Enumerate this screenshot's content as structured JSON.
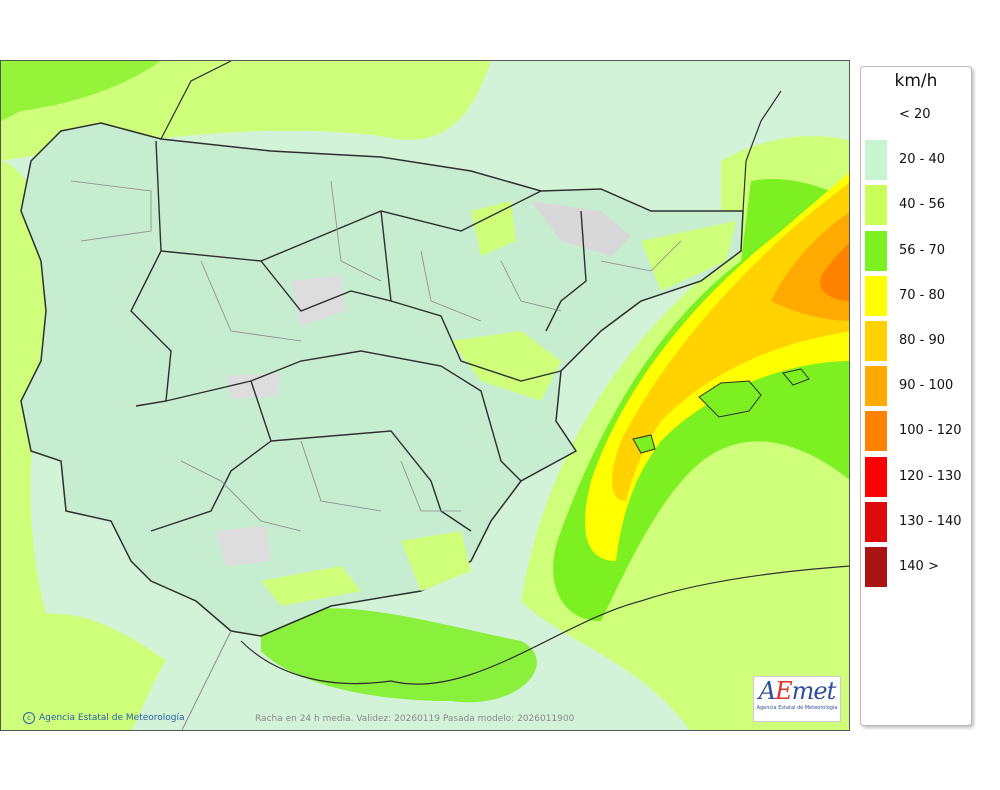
{
  "legend": {
    "unit": "km/h",
    "items": [
      {
        "label": "< 20",
        "color": "#ffffff"
      },
      {
        "label": "20 - 40",
        "color": "#c8f5d0"
      },
      {
        "label": "40 - 56",
        "color": "#c8ff5a"
      },
      {
        "label": "56 - 70",
        "color": "#7cf020"
      },
      {
        "label": "70 - 80",
        "color": "#ffff00"
      },
      {
        "label": "80 - 90",
        "color": "#ffd200"
      },
      {
        "label": "90 - 100",
        "color": "#ffaa00"
      },
      {
        "label": "100 - 120",
        "color": "#ff8200"
      },
      {
        "label": "120 - 130",
        "color": "#ff0000"
      },
      {
        "label": "130 - 140",
        "color": "#dc0a0a"
      },
      {
        "label": "140 >",
        "color": "#aa1414"
      }
    ]
  },
  "map": {
    "credit": "Agencia Estatal de Meteorología",
    "validity": "Racha en 24 h media. Validez: 20260119 Pasada modelo: 2026011900",
    "logo_brand_prefix": "A",
    "logo_brand_e": "E",
    "logo_brand_suffix": "met",
    "logo_subtitle": "Agencia Estatal de Meteorología"
  }
}
